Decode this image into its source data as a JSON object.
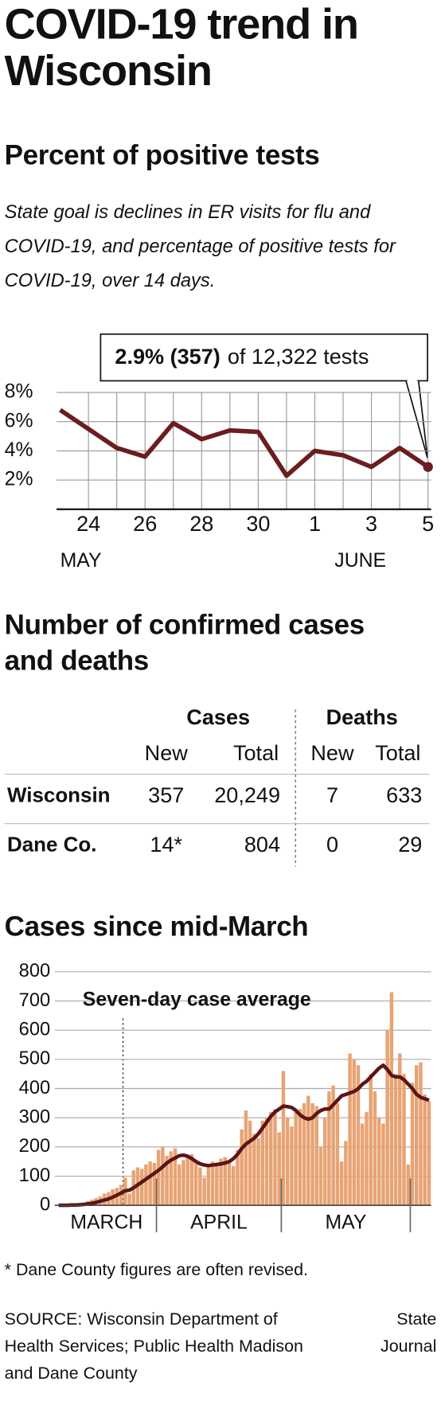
{
  "title": "COVID-19 trend in Wisconsin",
  "chart_data": [
    {
      "type": "line",
      "title": "Percent of positive tests",
      "subtitle": "State goal is declines in ER visits for flu and COVID-19, and percentage of positive tests for COVID-19, over 14 days.",
      "categories": [
        null,
        "24",
        null,
        "26",
        null,
        "28",
        null,
        "30",
        null,
        "1",
        null,
        "3",
        null,
        "5"
      ],
      "values": [
        6.8,
        5.5,
        4.2,
        3.6,
        5.9,
        4.8,
        5.4,
        5.3,
        2.3,
        4.0,
        3.7,
        2.9,
        4.2,
        2.9
      ],
      "color": "#6b1d1f",
      "ylim": [
        0,
        8
      ],
      "yticks": [
        {
          "value": 2,
          "label": "2%"
        },
        {
          "value": 4,
          "label": "4%"
        },
        {
          "value": 6,
          "label": "6%"
        },
        {
          "value": 8,
          "label": "8%"
        }
      ],
      "x_group_labels": [
        "MAY",
        "JUNE"
      ],
      "annotation": {
        "bold": "2.9% (357)",
        "text": "of 12,322 tests"
      },
      "grid": true
    },
    {
      "type": "bar",
      "title": "Cases since mid-March",
      "x_group_labels": [
        "MARCH",
        "APRIL",
        "MAY"
      ],
      "series": [
        {
          "color": "#e8a373",
          "values": [
            0,
            0,
            1,
            2,
            4,
            6,
            10,
            14,
            20,
            25,
            30,
            40,
            45,
            55,
            60,
            70,
            95,
            40,
            120,
            130,
            125,
            140,
            150,
            145,
            190,
            200,
            170,
            185,
            195,
            140,
            155,
            165,
            175,
            150,
            130,
            95,
            135,
            150,
            140,
            160,
            165,
            150,
            135,
            190,
            260,
            325,
            290,
            245,
            230,
            290,
            300,
            320,
            330,
            250,
            460,
            300,
            270,
            320,
            330,
            350,
            375,
            350,
            340,
            200,
            300,
            390,
            410,
            350,
            150,
            220,
            520,
            500,
            480,
            280,
            320,
            450,
            390,
            300,
            280,
            600,
            730,
            450,
            520,
            450,
            140,
            420,
            480,
            490,
            380,
            357
          ]
        },
        {
          "name": "Seven-day case average",
          "type": "line",
          "color": "#5c1416",
          "values": [
            0,
            0,
            0,
            1,
            1,
            2,
            3,
            5,
            7,
            10,
            14,
            18,
            22,
            28,
            35,
            42,
            50,
            52,
            60,
            70,
            80,
            90,
            100,
            110,
            120,
            132,
            145,
            155,
            162,
            170,
            172,
            168,
            160,
            150,
            142,
            138,
            136,
            138,
            140,
            142,
            145,
            150,
            160,
            175,
            195,
            210,
            220,
            230,
            245,
            265,
            285,
            305,
            320,
            330,
            340,
            338,
            335,
            325,
            310,
            300,
            295,
            300,
            315,
            325,
            330,
            330,
            345,
            360,
            375,
            380,
            385,
            390,
            400,
            415,
            425,
            440,
            455,
            470,
            480,
            465,
            445,
            440,
            440,
            430,
            415,
            400,
            380,
            370,
            365,
            360
          ]
        }
      ],
      "ylim": [
        0,
        800
      ],
      "yticks": [
        0,
        100,
        200,
        300,
        400,
        500,
        600,
        700,
        800
      ],
      "grid": true
    }
  ],
  "table": {
    "title": "Number of confirmed cases and deaths",
    "groups": [
      "Cases",
      "Deaths"
    ],
    "columns": [
      "New",
      "Total",
      "New",
      "Total"
    ],
    "rows": [
      [
        "Wisconsin",
        "357",
        "20,249",
        "7",
        "633"
      ],
      [
        "Dane Co.",
        "14*",
        "804",
        "0",
        "29"
      ]
    ]
  },
  "footnote": "* Dane County figures are often revised.",
  "source": "SOURCE: Wisconsin Department of Health Services; Public Health Madison and Dane County",
  "credit": "State Journal"
}
